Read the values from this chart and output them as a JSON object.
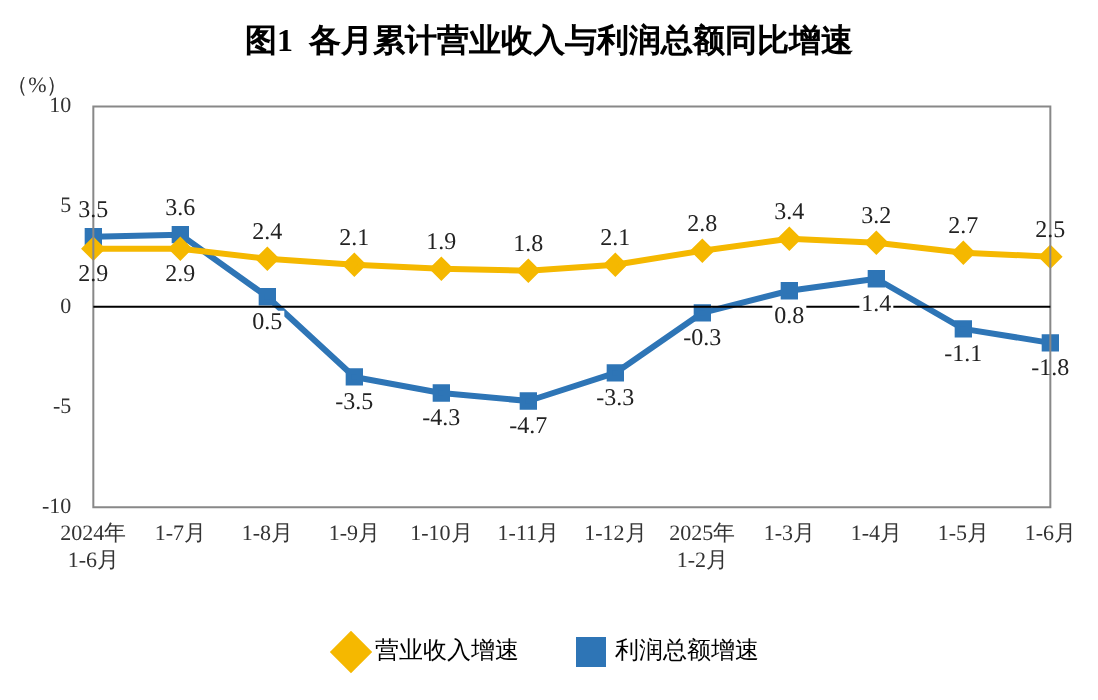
{
  "chart_data": {
    "type": "line",
    "title": "图1  各月累计营业收入与利润总额同比增速",
    "ylabel": "（%）",
    "categories": [
      "2024年\n1-6月",
      "1-7月",
      "1-8月",
      "1-9月",
      "1-10月",
      "1-11月",
      "1-12月",
      "2025年\n1-2月",
      "1-3月",
      "1-4月",
      "1-5月",
      "1-6月"
    ],
    "series": [
      {
        "name": "营业收入增速",
        "color": "#f5b800",
        "marker": "diamond",
        "values": [
          2.9,
          2.9,
          2.4,
          2.1,
          1.9,
          1.8,
          2.1,
          2.8,
          3.4,
          3.2,
          2.7,
          2.5
        ]
      },
      {
        "name": "利润总额增速",
        "color": "#2e75b6",
        "marker": "square",
        "values": [
          3.5,
          3.6,
          0.5,
          -3.5,
          -4.3,
          -4.7,
          -3.3,
          -0.3,
          0.8,
          1.4,
          -1.1,
          -1.8
        ]
      }
    ],
    "ylim": [
      -10,
      10
    ],
    "yticks": [
      -10,
      -5,
      0,
      5,
      10
    ],
    "grid": false,
    "legend": "bottom",
    "data_labels": true,
    "ref_lines": [
      {
        "axis": "y",
        "value": 0,
        "color": "#000000"
      }
    ]
  }
}
